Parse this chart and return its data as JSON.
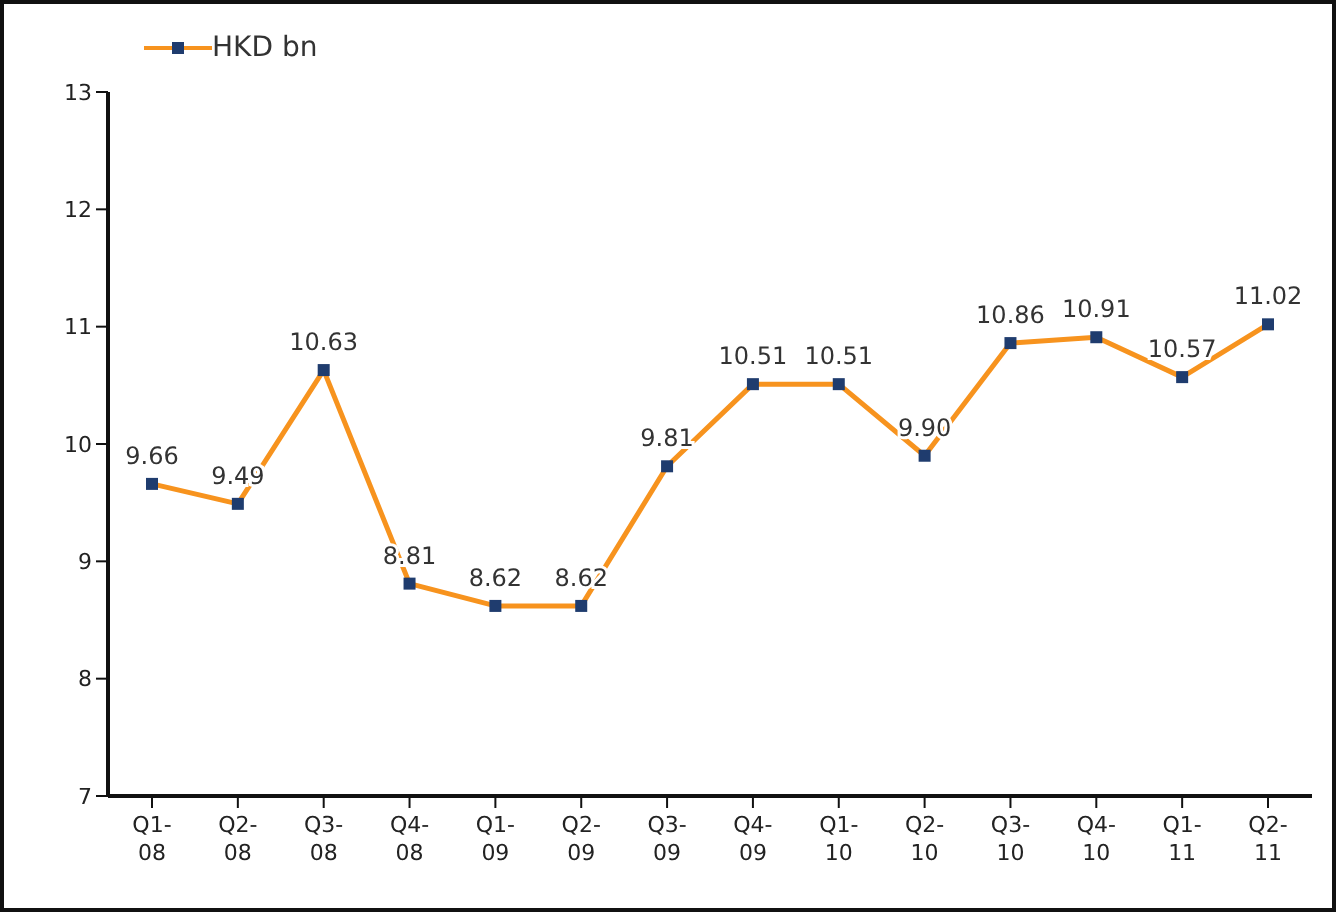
{
  "chart_data": {
    "type": "line",
    "categories": [
      "Q1-08",
      "Q2-08",
      "Q3-08",
      "Q4-08",
      "Q1-09",
      "Q2-09",
      "Q3-09",
      "Q4-09",
      "Q1-10",
      "Q2-10",
      "Q3-10",
      "Q4-10",
      "Q1-11",
      "Q2-11"
    ],
    "series": [
      {
        "name": "HKD bn",
        "color": "#f7931e",
        "colors": [
          "#1f3c6e",
          "#1f3c6e",
          "#1f3c6e",
          "#1f3c6e",
          "#1f3c6e",
          "#1f3c6e",
          "#1f3c6e",
          "#1f3c6e",
          "#1f3c6e",
          "#1f3c6e",
          "#1f3c6e",
          "#1f3c6e",
          "#1f3c6e",
          "#1f3c6e"
        ],
        "values": [
          9.66,
          9.49,
          10.63,
          8.81,
          8.62,
          8.62,
          9.81,
          10.51,
          10.51,
          9.9,
          10.86,
          10.91,
          10.57,
          11.02
        ],
        "value_labels": [
          "9.66",
          "9.49",
          "10.63",
          "8.81",
          "8.62",
          "8.62",
          "9.81",
          "10.51",
          "10.51",
          "9.90",
          "10.86",
          "10.91",
          "10.57",
          "11.02"
        ]
      }
    ],
    "ylim": [
      7,
      13
    ],
    "yticks": [
      7,
      8,
      9,
      10,
      11,
      12,
      13
    ],
    "grid": false,
    "legend": "top left",
    "marker": "square",
    "line_style": "solid"
  }
}
